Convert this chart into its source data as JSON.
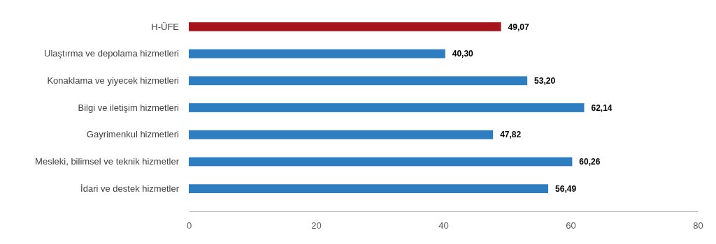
{
  "chart_data": {
    "type": "bar",
    "orientation": "horizontal",
    "categories": [
      "H-ÜFE",
      "Ulaştırma ve depolama hizmetleri",
      "Konaklama ve yiyecek hizmetleri",
      "Bilgi ve iletişim hizmetleri",
      "Gayrimenkul hizmetleri",
      "Mesleki, bilimsel ve teknik hizmetler",
      "İdari ve destek hizmetler"
    ],
    "values": [
      49.07,
      40.3,
      53.2,
      62.14,
      47.82,
      60.26,
      56.49
    ],
    "colors": [
      "#a6141c",
      "#2e7dc0",
      "#2e7dc0",
      "#2e7dc0",
      "#2e7dc0",
      "#2e7dc0",
      "#2e7dc0"
    ],
    "value_labels": [
      "49,07",
      "40,30",
      "53,20",
      "62,14",
      "47,82",
      "60,26",
      "56,49"
    ],
    "xlim": [
      0,
      80
    ],
    "xticks": [
      0,
      20,
      40,
      60,
      80
    ],
    "grid": false
  }
}
